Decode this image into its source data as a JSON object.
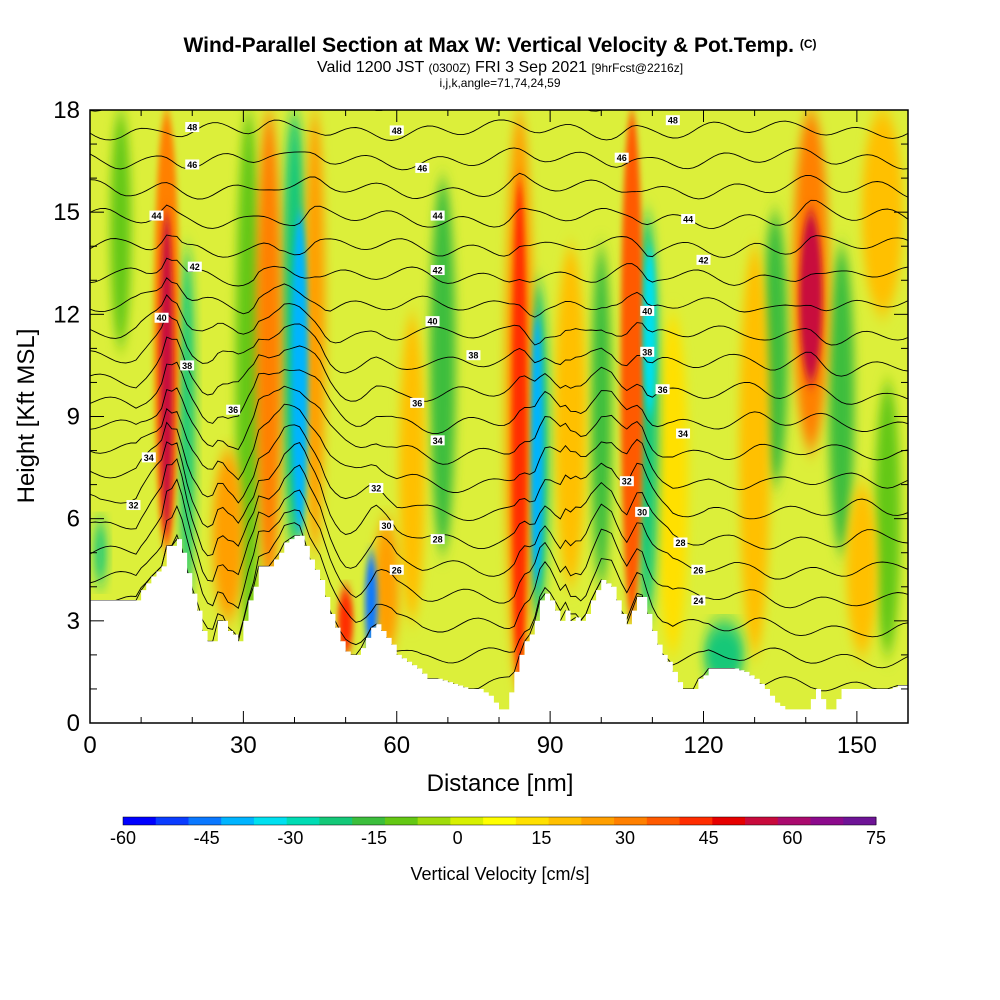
{
  "title": {
    "main": "Wind-Parallel Section at Max W: Vertical Velocity & Pot.Temp.",
    "copyright": "(C)",
    "valid_prefix": "Valid 1200 JST",
    "valid_utc": "(0300Z)",
    "valid_date": "FRI 3 Sep 2021",
    "forecast": "[9hrFcst@2216z]",
    "params": "i,j,k,angle=71,74,24,59"
  },
  "chart_data": {
    "type": "heatmap",
    "xlabel": "Distance [nm]",
    "ylabel": "Height [Kft MSL]",
    "xlim": [
      0,
      160
    ],
    "ylim": [
      0,
      18
    ],
    "x_ticks": [
      0,
      30,
      60,
      90,
      120,
      150
    ],
    "y_ticks": [
      0,
      3,
      6,
      9,
      12,
      15,
      18
    ],
    "colorbar": {
      "label": "Vertical Velocity [cm/s]",
      "ticks": [
        -60,
        -45,
        -30,
        -15,
        0,
        15,
        30,
        45,
        60,
        75
      ],
      "colors": [
        "#0000ff",
        "#0a3cff",
        "#0a78ff",
        "#00b4ff",
        "#00e0f0",
        "#00dcb4",
        "#14c878",
        "#3cbe3c",
        "#64c814",
        "#a0dc0a",
        "#d7f000",
        "#ffff00",
        "#ffe000",
        "#ffc000",
        "#ff9f00",
        "#ff8000",
        "#ff5a00",
        "#ff2d00",
        "#e60000",
        "#c80a3c",
        "#aa0a6e",
        "#8c0a8c",
        "#6e1496"
      ]
    },
    "vertical_velocity_columns": [
      {
        "x": 2,
        "w": 1.2,
        "z0": 4,
        "z1": 6,
        "value": -20
      },
      {
        "x": 6,
        "w": 2,
        "z0": 11,
        "z1": 18,
        "value": -12
      },
      {
        "x": 15,
        "w": 1.3,
        "z0": 5.5,
        "z1": 15,
        "value": 52
      },
      {
        "x": 15,
        "w": 2.5,
        "z0": 5,
        "z1": 18,
        "value": 32
      },
      {
        "x": 19,
        "w": 1.5,
        "z0": 3.5,
        "z1": 14,
        "value": -22
      },
      {
        "x": 27,
        "w": 3,
        "z0": 3,
        "z1": 8,
        "value": 25
      },
      {
        "x": 31,
        "w": 2.5,
        "z0": 2.5,
        "z1": 18,
        "value": -12
      },
      {
        "x": 35,
        "w": 2.5,
        "z0": 4,
        "z1": 18,
        "value": 30
      },
      {
        "x": 41,
        "w": 1.6,
        "z0": 5.5,
        "z1": 15,
        "value": -38
      },
      {
        "x": 40,
        "w": 2.5,
        "z0": 5,
        "z1": 18,
        "value": -22
      },
      {
        "x": 44,
        "w": 2,
        "z0": 5,
        "z1": 18,
        "value": 28
      },
      {
        "x": 50,
        "w": 1.5,
        "z0": 2,
        "z1": 4,
        "value": 40
      },
      {
        "x": 55,
        "w": 1.2,
        "z0": 2,
        "z1": 5,
        "value": -45
      },
      {
        "x": 58,
        "w": 2.5,
        "z0": 2,
        "z1": 6,
        "value": 28
      },
      {
        "x": 63,
        "w": 2.5,
        "z0": 3,
        "z1": 12,
        "value": 18
      },
      {
        "x": 69,
        "w": 2.5,
        "z0": 5,
        "z1": 16,
        "value": -14
      },
      {
        "x": 84,
        "w": 1.5,
        "z0": 1,
        "z1": 16,
        "value": 40
      },
      {
        "x": 84,
        "w": 2.8,
        "z0": 1,
        "z1": 18,
        "value": 24
      },
      {
        "x": 87.5,
        "w": 1.2,
        "z0": 4,
        "z1": 12,
        "value": -38
      },
      {
        "x": 87.5,
        "w": 2.2,
        "z0": 3,
        "z1": 13,
        "value": -20
      },
      {
        "x": 94,
        "w": 3,
        "z0": 4,
        "z1": 14,
        "value": 18
      },
      {
        "x": 100,
        "w": 2,
        "z0": 4,
        "z1": 14,
        "value": -14
      },
      {
        "x": 106,
        "w": 2.2,
        "z0": 3,
        "z1": 18,
        "value": 35
      },
      {
        "x": 109.5,
        "w": 1.2,
        "z0": 9,
        "z1": 14,
        "value": -36
      },
      {
        "x": 109,
        "w": 2.2,
        "z0": 3,
        "z1": 15,
        "value": -20
      },
      {
        "x": 114,
        "w": 3,
        "z0": 2,
        "z1": 12,
        "value": 15
      },
      {
        "x": 124,
        "w": 4,
        "z0": 1,
        "z1": 3,
        "value": -24
      },
      {
        "x": 130,
        "w": 3,
        "z0": 2,
        "z1": 14,
        "value": 20
      },
      {
        "x": 134,
        "w": 2.5,
        "z0": 7,
        "z1": 15,
        "value": -18
      },
      {
        "x": 141,
        "w": 2.2,
        "z0": 10,
        "z1": 15,
        "value": 52
      },
      {
        "x": 141,
        "w": 3.5,
        "z0": 8,
        "z1": 18,
        "value": 30
      },
      {
        "x": 147,
        "w": 2.5,
        "z0": 5,
        "z1": 14,
        "value": -14
      },
      {
        "x": 151,
        "w": 3,
        "z0": 2,
        "z1": 7,
        "value": 18
      },
      {
        "x": 156,
        "w": 2.5,
        "z0": 2,
        "z1": 10,
        "value": -12
      },
      {
        "x": 155,
        "w": 4,
        "z0": 12,
        "z1": 18,
        "value": 20
      }
    ],
    "terrain": [
      [
        0,
        3.6
      ],
      [
        4,
        3.6
      ],
      [
        9,
        3.6
      ],
      [
        10,
        3.9
      ],
      [
        12,
        4.3
      ],
      [
        14,
        4.6
      ],
      [
        15,
        5.2
      ],
      [
        16,
        5.2
      ],
      [
        17,
        5.4
      ],
      [
        18,
        5.0
      ],
      [
        19,
        4.4
      ],
      [
        20,
        3.8
      ],
      [
        21,
        3.3
      ],
      [
        22,
        2.7
      ],
      [
        23,
        2.4
      ],
      [
        24,
        2.4
      ],
      [
        25,
        3.0
      ],
      [
        26,
        3.0
      ],
      [
        27,
        2.7
      ],
      [
        28,
        2.6
      ],
      [
        29,
        2.4
      ],
      [
        30,
        3.0
      ],
      [
        31,
        3.6
      ],
      [
        32,
        4.0
      ],
      [
        33,
        4.6
      ],
      [
        34,
        4.6
      ],
      [
        35,
        4.6
      ],
      [
        36,
        4.8
      ],
      [
        37,
        5.0
      ],
      [
        38,
        5.3
      ],
      [
        39,
        5.4
      ],
      [
        40,
        5.5
      ],
      [
        41,
        5.5
      ],
      [
        42,
        5.2
      ],
      [
        43,
        4.8
      ],
      [
        44,
        4.5
      ],
      [
        45,
        4.2
      ],
      [
        46,
        3.7
      ],
      [
        47,
        3.2
      ],
      [
        48,
        2.8
      ],
      [
        49,
        2.4
      ],
      [
        50,
        2.1
      ],
      [
        51,
        2.0
      ],
      [
        52,
        2.0
      ],
      [
        53,
        2.2
      ],
      [
        54,
        2.5
      ],
      [
        55,
        2.8
      ],
      [
        56,
        2.9
      ],
      [
        57,
        2.7
      ],
      [
        58,
        2.5
      ],
      [
        59,
        2.3
      ],
      [
        60,
        2.0
      ],
      [
        62,
        1.8
      ],
      [
        64,
        1.6
      ],
      [
        66,
        1.3
      ],
      [
        68,
        1.3
      ],
      [
        70,
        1.2
      ],
      [
        72,
        1.1
      ],
      [
        74,
        1.0
      ],
      [
        76,
        1.0
      ],
      [
        78,
        0.8
      ],
      [
        79,
        0.6
      ],
      [
        80,
        0.4
      ],
      [
        81,
        0.4
      ],
      [
        82,
        0.9
      ],
      [
        83,
        1.5
      ],
      [
        84,
        2.0
      ],
      [
        85,
        2.4
      ],
      [
        86,
        2.6
      ],
      [
        87,
        3.0
      ],
      [
        88,
        3.6
      ],
      [
        89,
        3.8
      ],
      [
        90,
        3.6
      ],
      [
        91,
        3.3
      ],
      [
        92,
        3.0
      ],
      [
        93,
        3.3
      ],
      [
        94,
        3.0
      ],
      [
        95,
        3.1
      ],
      [
        96,
        3.0
      ],
      [
        97,
        3.2
      ],
      [
        98,
        3.6
      ],
      [
        99,
        3.9
      ],
      [
        100,
        4.2
      ],
      [
        101,
        4.1
      ],
      [
        102,
        4.0
      ],
      [
        103,
        3.6
      ],
      [
        104,
        3.2
      ],
      [
        105,
        2.9
      ],
      [
        106,
        3.3
      ],
      [
        107,
        3.7
      ],
      [
        108,
        3.7
      ],
      [
        109,
        3.2
      ],
      [
        110,
        2.7
      ],
      [
        111,
        2.3
      ],
      [
        112,
        2.0
      ],
      [
        113,
        1.8
      ],
      [
        114,
        1.5
      ],
      [
        115,
        1.2
      ],
      [
        116,
        1.0
      ],
      [
        117,
        1.0
      ],
      [
        118,
        1.0
      ],
      [
        119,
        1.3
      ],
      [
        120,
        1.4
      ],
      [
        121,
        1.6
      ],
      [
        122,
        1.6
      ],
      [
        124,
        1.6
      ],
      [
        126,
        1.6
      ],
      [
        128,
        1.5
      ],
      [
        130,
        1.3
      ],
      [
        132,
        1.0
      ],
      [
        134,
        0.6
      ],
      [
        136,
        0.4
      ],
      [
        138,
        0.4
      ],
      [
        140,
        0.4
      ],
      [
        141,
        0.7
      ],
      [
        142,
        1.0
      ],
      [
        143,
        0.7
      ],
      [
        144,
        0.4
      ],
      [
        145,
        0.4
      ],
      [
        146,
        0.7
      ],
      [
        147,
        1.0
      ],
      [
        150,
        1.0
      ],
      [
        152,
        1.0
      ],
      [
        154,
        1.0
      ],
      [
        156,
        1.0
      ],
      [
        158,
        1.1
      ],
      [
        160,
        1.1
      ]
    ],
    "theta_labels": [
      {
        "x": 20,
        "z": 17.5,
        "text": "48"
      },
      {
        "x": 20,
        "z": 16.4,
        "text": "46"
      },
      {
        "x": 13,
        "z": 14.9,
        "text": "44"
      },
      {
        "x": 20.5,
        "z": 13.4,
        "text": "42"
      },
      {
        "x": 14,
        "z": 11.9,
        "text": "40"
      },
      {
        "x": 19,
        "z": 10.5,
        "text": "38"
      },
      {
        "x": 28,
        "z": 9.2,
        "text": "36"
      },
      {
        "x": 11.5,
        "z": 7.8,
        "text": "34"
      },
      {
        "x": 8.5,
        "z": 6.4,
        "text": "32"
      },
      {
        "x": 60,
        "z": 17.4,
        "text": "48"
      },
      {
        "x": 65,
        "z": 16.3,
        "text": "46"
      },
      {
        "x": 68,
        "z": 14.9,
        "text": "44"
      },
      {
        "x": 68,
        "z": 13.3,
        "text": "42"
      },
      {
        "x": 67,
        "z": 11.8,
        "text": "40"
      },
      {
        "x": 75,
        "z": 10.8,
        "text": "38"
      },
      {
        "x": 64,
        "z": 9.4,
        "text": "36"
      },
      {
        "x": 68,
        "z": 8.3,
        "text": "34"
      },
      {
        "x": 56,
        "z": 6.9,
        "text": "32"
      },
      {
        "x": 58,
        "z": 5.8,
        "text": "30"
      },
      {
        "x": 68,
        "z": 5.4,
        "text": "28"
      },
      {
        "x": 60,
        "z": 4.5,
        "text": "26"
      },
      {
        "x": 114,
        "z": 17.7,
        "text": "48"
      },
      {
        "x": 104,
        "z": 16.6,
        "text": "46"
      },
      {
        "x": 117,
        "z": 14.8,
        "text": "44"
      },
      {
        "x": 120,
        "z": 13.6,
        "text": "42"
      },
      {
        "x": 109,
        "z": 12.1,
        "text": "40"
      },
      {
        "x": 109,
        "z": 10.9,
        "text": "38"
      },
      {
        "x": 112,
        "z": 9.8,
        "text": "36"
      },
      {
        "x": 116,
        "z": 8.5,
        "text": "34"
      },
      {
        "x": 105,
        "z": 7.1,
        "text": "32"
      },
      {
        "x": 108,
        "z": 6.2,
        "text": "30"
      },
      {
        "x": 115.5,
        "z": 5.3,
        "text": "28"
      },
      {
        "x": 119,
        "z": 4.5,
        "text": "26"
      },
      {
        "x": 119,
        "z": 3.6,
        "text": "24"
      }
    ]
  }
}
